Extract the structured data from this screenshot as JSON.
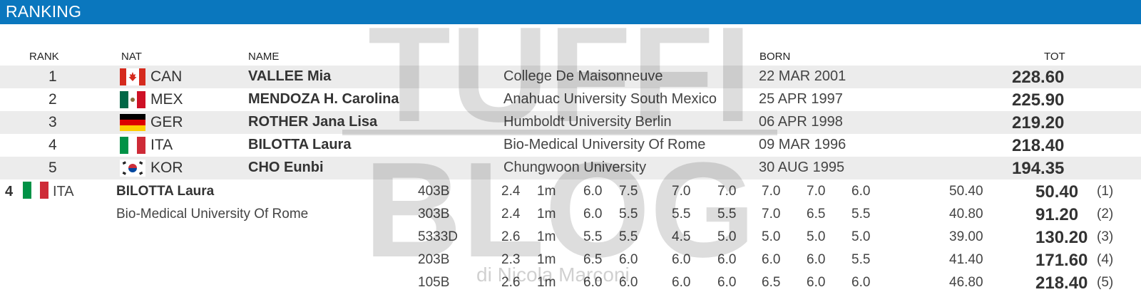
{
  "header": {
    "title": "RANKING"
  },
  "columns": {
    "rank": "RANK",
    "nat": "NAT",
    "name": "NAME",
    "born": "BORN",
    "tot": "TOT"
  },
  "ranking": [
    {
      "rank": "1",
      "nat": "CAN",
      "flag": "canada-flag-icon",
      "name": "VALLEE Mia",
      "school": "College De Maisonneuve",
      "born": "22 MAR 2001",
      "tot": "228.60"
    },
    {
      "rank": "2",
      "nat": "MEX",
      "flag": "mexico-flag-icon",
      "name": "MENDOZA H. Carolina",
      "school": "Anahuac University South Mexico",
      "born": "25 APR 1997",
      "tot": "225.90"
    },
    {
      "rank": "3",
      "nat": "GER",
      "flag": "germany-flag-icon",
      "name": "ROTHER Jana Lisa",
      "school": "Humboldt University Berlin",
      "born": "06 APR 1998",
      "tot": "219.20"
    },
    {
      "rank": "4",
      "nat": "ITA",
      "flag": "italy-flag-icon",
      "name": "BILOTTA Laura",
      "school": "Bio-Medical University Of Rome",
      "born": "09 MAR 1996",
      "tot": "218.40"
    },
    {
      "rank": "5",
      "nat": "KOR",
      "flag": "korea-flag-icon",
      "name": "CHO Eunbi",
      "school": "Chungwoon University",
      "born": "30 AUG 1995",
      "tot": "194.35"
    }
  ],
  "detail": {
    "rank": "4",
    "nat": "ITA",
    "name": "BILOTTA Laura",
    "school": "Bio-Medical University Of Rome",
    "dives": [
      {
        "code": "403B",
        "dd": "2.4",
        "height": "1m",
        "scores": [
          "6.0",
          "7.5",
          "7.0",
          "7.0",
          "7.0",
          "7.0",
          "6.0"
        ],
        "points": "50.40",
        "cumulative": "50.40",
        "order": "(1)"
      },
      {
        "code": "303B",
        "dd": "2.4",
        "height": "1m",
        "scores": [
          "6.0",
          "5.5",
          "5.5",
          "5.5",
          "7.0",
          "6.5",
          "5.5"
        ],
        "points": "40.80",
        "cumulative": "91.20",
        "order": "(2)"
      },
      {
        "code": "5333D",
        "dd": "2.6",
        "height": "1m",
        "scores": [
          "5.5",
          "5.5",
          "4.5",
          "5.0",
          "5.0",
          "5.0",
          "5.0"
        ],
        "points": "39.00",
        "cumulative": "130.20",
        "order": "(3)"
      },
      {
        "code": "203B",
        "dd": "2.3",
        "height": "1m",
        "scores": [
          "6.5",
          "6.0",
          "6.0",
          "6.0",
          "6.0",
          "6.0",
          "5.5"
        ],
        "points": "41.40",
        "cumulative": "171.60",
        "order": "(4)"
      },
      {
        "code": "105B",
        "dd": "2.6",
        "height": "1m",
        "scores": [
          "6.0",
          "6.0",
          "6.0",
          "6.0",
          "6.5",
          "6.0",
          "6.0"
        ],
        "points": "46.80",
        "cumulative": "218.40",
        "order": "(5)"
      }
    ]
  },
  "watermark": {
    "line1": "TUFFI",
    "line2": "BLOG",
    "byline": "di Nicola Marconi"
  }
}
